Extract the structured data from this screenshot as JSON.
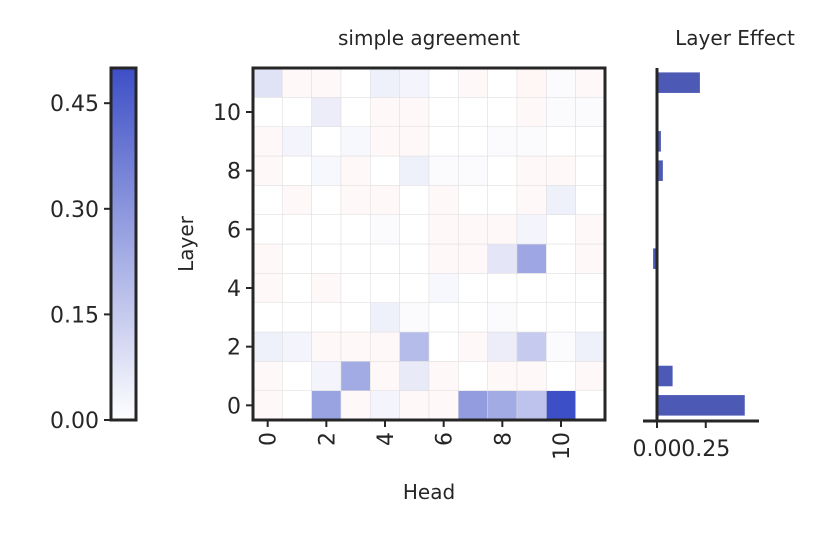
{
  "chart_data": [
    {
      "type": "heatmap",
      "title": "simple agreement",
      "xlabel": "Head",
      "ylabel": "Layer",
      "x_ticks": [
        0,
        2,
        4,
        6,
        8,
        10
      ],
      "y_ticks": [
        0,
        2,
        4,
        6,
        8,
        10
      ],
      "rows_bottom_to_top": [
        [
          0.01,
          0.0,
          0.26,
          0.01,
          0.03,
          0.01,
          0.01,
          0.28,
          0.24,
          0.17,
          0.5,
          0.0
        ],
        [
          0.01,
          0.0,
          0.03,
          0.24,
          0.01,
          0.06,
          0.01,
          0.0,
          0.01,
          0.01,
          0.0,
          0.01
        ],
        [
          0.04,
          0.03,
          0.01,
          0.01,
          0.01,
          0.19,
          0.0,
          0.01,
          0.05,
          0.15,
          0.01,
          0.04
        ],
        [
          0.0,
          0.0,
          0.0,
          0.0,
          0.04,
          0.01,
          0.0,
          0.0,
          0.01,
          0.0,
          0.0,
          0.0
        ],
        [
          0.01,
          0.0,
          0.01,
          0.0,
          0.0,
          0.0,
          0.02,
          0.0,
          0.0,
          0.0,
          0.0,
          0.0
        ],
        [
          0.01,
          0.0,
          0.0,
          0.0,
          0.0,
          0.0,
          0.01,
          0.01,
          0.07,
          0.25,
          0.0,
          0.01
        ],
        [
          0.0,
          0.0,
          0.0,
          0.0,
          0.01,
          0.0,
          0.01,
          0.01,
          0.01,
          0.03,
          0.0,
          0.01
        ],
        [
          0.0,
          0.01,
          0.0,
          0.01,
          0.01,
          0.0,
          0.01,
          0.0,
          0.0,
          0.01,
          0.04,
          0.0
        ],
        [
          0.01,
          0.0,
          0.02,
          0.01,
          0.0,
          0.04,
          0.01,
          0.01,
          0.0,
          0.01,
          0.01,
          0.0
        ],
        [
          0.01,
          0.03,
          0.0,
          0.02,
          0.01,
          0.01,
          0.0,
          0.0,
          0.01,
          0.01,
          0.0,
          0.0
        ],
        [
          0.0,
          0.0,
          0.05,
          0.0,
          0.01,
          0.01,
          0.0,
          0.0,
          0.0,
          0.01,
          0.01,
          0.01
        ],
        [
          0.08,
          0.01,
          0.01,
          0.0,
          0.04,
          0.03,
          0.0,
          0.01,
          0.0,
          0.02,
          0.01,
          0.01
        ]
      ],
      "signs_bottom_to_top": [
        [
          -1,
          1,
          1,
          -1,
          1,
          -1,
          -1,
          1,
          1,
          1,
          1,
          1
        ],
        [
          -1,
          1,
          1,
          1,
          -1,
          1,
          -1,
          1,
          -1,
          -1,
          1,
          -1
        ],
        [
          1,
          1,
          -1,
          -1,
          -1,
          1,
          1,
          -1,
          1,
          1,
          1,
          1
        ],
        [
          1,
          1,
          1,
          1,
          1,
          1,
          1,
          1,
          1,
          1,
          1,
          1
        ],
        [
          -1,
          1,
          -1,
          1,
          1,
          1,
          1,
          1,
          1,
          1,
          1,
          1
        ],
        [
          -1,
          1,
          1,
          1,
          1,
          1,
          -1,
          -1,
          1,
          1,
          1,
          -1
        ],
        [
          1,
          1,
          1,
          1,
          1,
          1,
          -1,
          -1,
          -1,
          1,
          1,
          -1
        ],
        [
          1,
          -1,
          1,
          -1,
          -1,
          1,
          -1,
          1,
          1,
          -1,
          1,
          1
        ],
        [
          -1,
          1,
          1,
          -1,
          1,
          1,
          1,
          1,
          1,
          -1,
          -1,
          1
        ],
        [
          -1,
          1,
          1,
          1,
          -1,
          -1,
          1,
          1,
          1,
          1,
          1,
          1
        ],
        [
          1,
          1,
          1,
          1,
          -1,
          -1,
          1,
          1,
          1,
          -1,
          1,
          1
        ],
        [
          1,
          -1,
          -1,
          1,
          1,
          1,
          1,
          -1,
          1,
          -1,
          1,
          -1
        ]
      ]
    },
    {
      "type": "bar",
      "orientation": "horizontal",
      "title": "Layer Effect",
      "categories": [
        0,
        1,
        2,
        3,
        4,
        5,
        6,
        7,
        8,
        9,
        10,
        11
      ],
      "values": [
        0.45,
        0.08,
        0.0,
        0.0,
        0.0,
        -0.02,
        0.0,
        0.0,
        0.03,
        0.02,
        0.0,
        0.22
      ],
      "x_ticks": [
        0.0,
        0.25
      ],
      "x_tick_labels": [
        "0.00",
        "0.25"
      ],
      "color": "#4c59b5"
    },
    {
      "type": "colorbar",
      "ticks": [
        0.0,
        0.15,
        0.3,
        0.45
      ],
      "tick_labels": [
        "0.00",
        "0.15",
        "0.30",
        "0.45"
      ],
      "range": [
        0,
        0.5
      ],
      "color_low": "#ffffff",
      "color_high": "#3d4fc6"
    }
  ]
}
